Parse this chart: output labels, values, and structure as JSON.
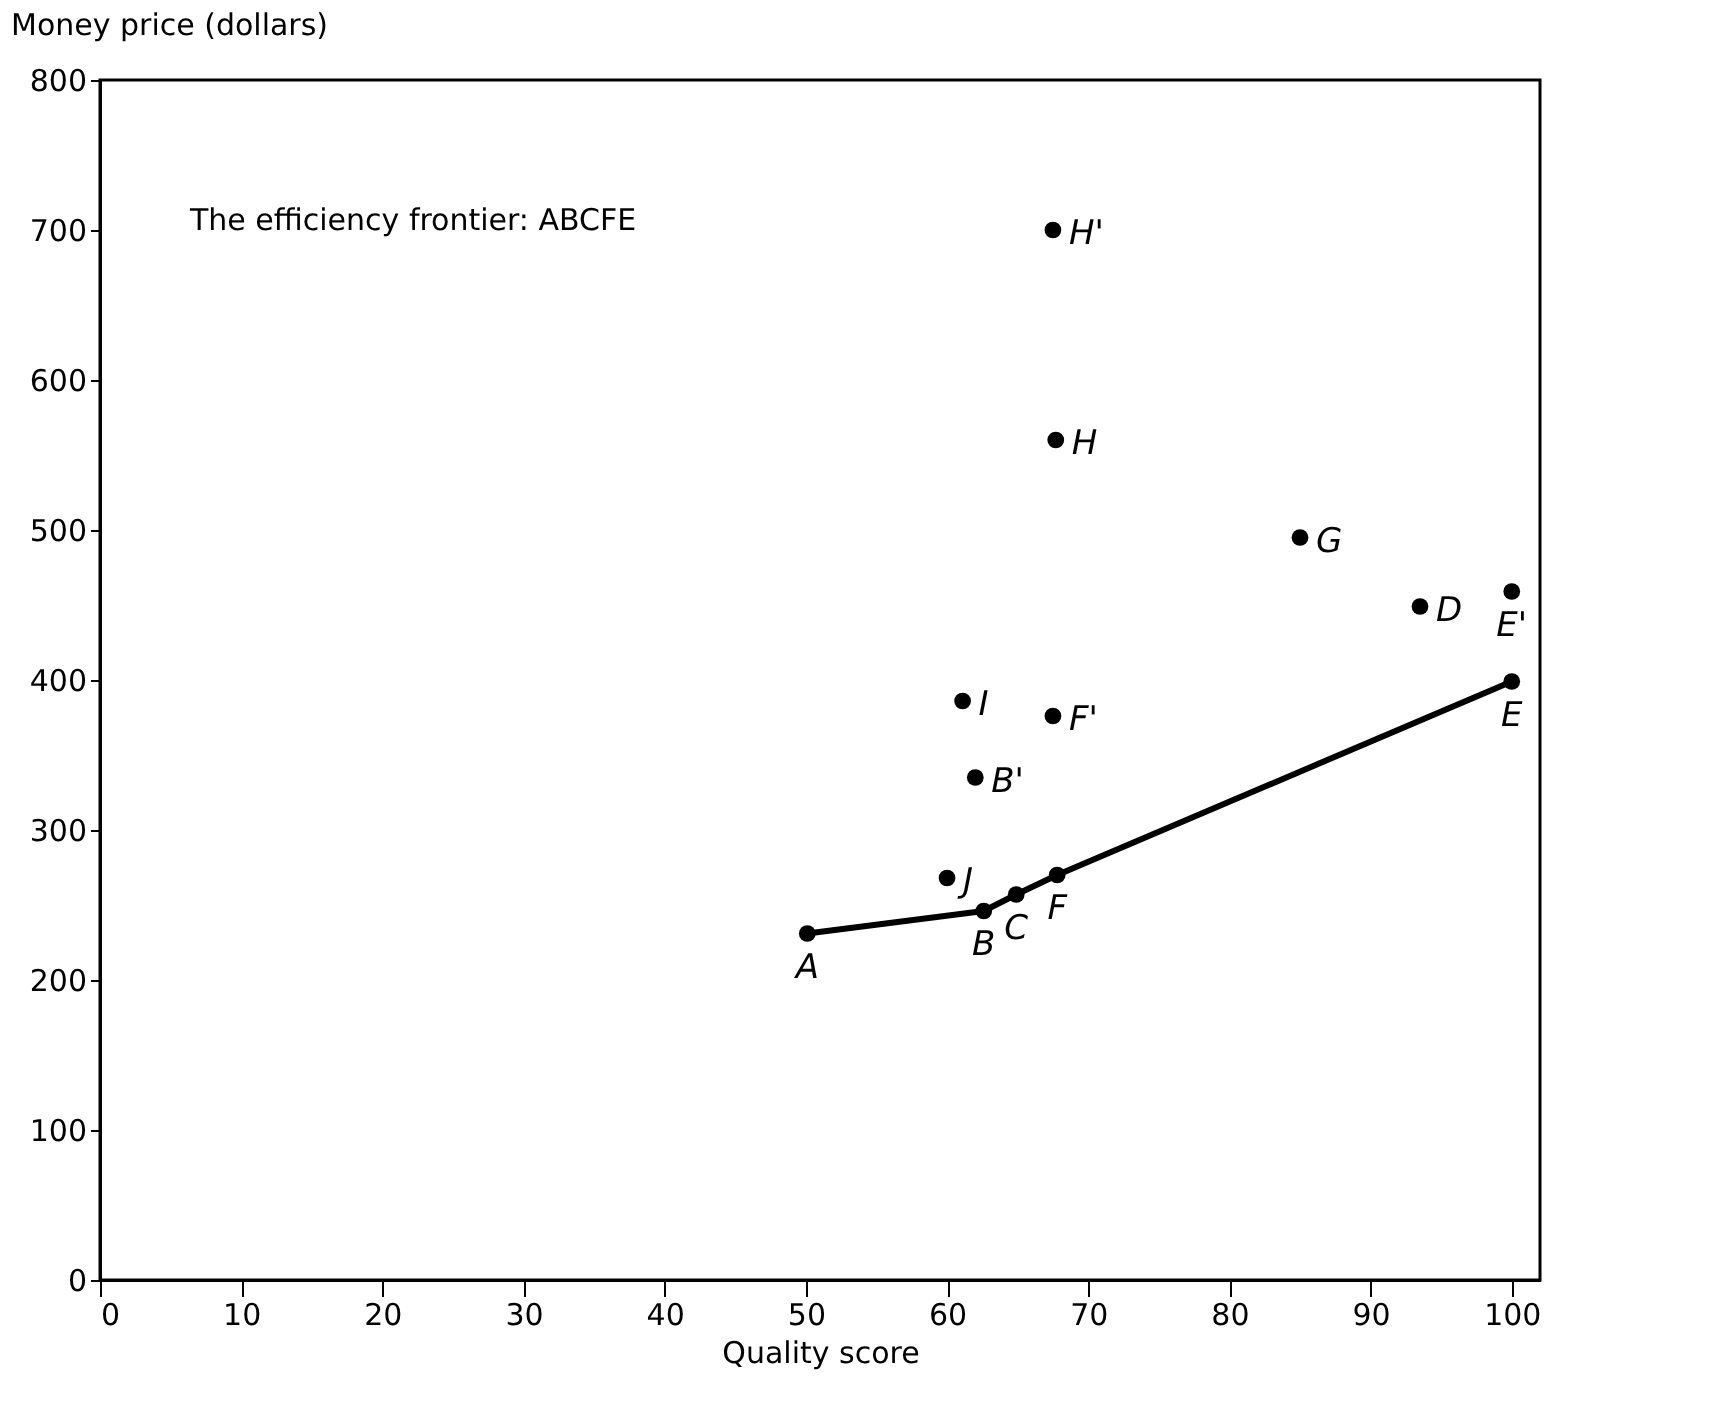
{
  "chart_data": {
    "type": "scatter",
    "xlabel": "Quality score",
    "ylabel": "Money price (dollars)",
    "xlim": [
      0,
      102
    ],
    "xticks": [
      0,
      10,
      20,
      30,
      40,
      50,
      60,
      70,
      80,
      90,
      100
    ],
    "ylim": [
      0,
      800
    ],
    "yticks": [
      0,
      100,
      200,
      300,
      400,
      500,
      600,
      700,
      800
    ],
    "grid": false,
    "marker": "circle",
    "series": [
      {
        "type": "line",
        "color": "#000000",
        "x": [
          50.1,
          62.6,
          64.9,
          67.8,
          100
        ],
        "values": [
          231,
          246,
          257,
          270,
          399
        ]
      },
      {
        "color": "#000000",
        "x": [
          67.5,
          67.7,
          85,
          93.5,
          100,
          61.1,
          67.5,
          62,
          60
        ],
        "values": [
          700,
          560,
          495,
          449,
          459,
          386,
          376,
          335,
          268
        ]
      }
    ],
    "annotations": [
      "The efficiency frontier: ABCFE",
      {
        "text": "A",
        "x": 50.1,
        "y": 231
      },
      {
        "text": "B",
        "x": 62.6,
        "y": 246
      },
      {
        "text": "C",
        "x": 64.9,
        "y": 257
      },
      {
        "text": "F",
        "x": 67.8,
        "y": 270
      },
      {
        "text": "E",
        "x": 100,
        "y": 399
      },
      {
        "text": "H'",
        "x": 67.5,
        "y": 700
      },
      {
        "text": "H",
        "x": 67.7,
        "y": 560
      },
      {
        "text": "G",
        "x": 85,
        "y": 495
      },
      {
        "text": "D",
        "x": 93.5,
        "y": 449
      },
      {
        "text": "E'",
        "x": 100,
        "y": 459
      },
      {
        "text": "I",
        "x": 61.1,
        "y": 386
      },
      {
        "text": "F'",
        "x": 67.5,
        "y": 376
      },
      {
        "text": "B'",
        "x": 62,
        "y": 335
      },
      {
        "text": "J",
        "x": 60,
        "y": 268
      }
    ]
  }
}
